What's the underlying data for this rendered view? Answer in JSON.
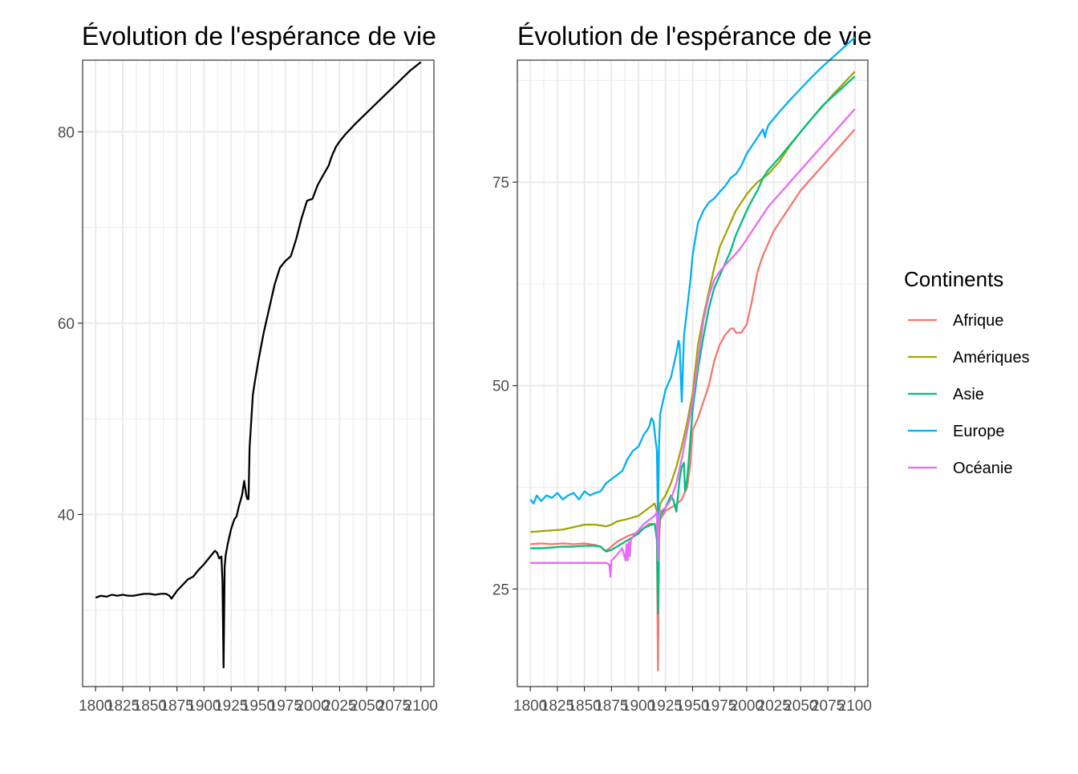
{
  "chart_data": [
    {
      "type": "line",
      "title": "Évolution de l'espérance de vie",
      "xlabel": "",
      "ylabel": "",
      "xlim": [
        1788,
        2112
      ],
      "ylim": [
        22,
        87.5
      ],
      "x_ticks": [
        1800,
        1825,
        1850,
        1875,
        1900,
        1925,
        1950,
        1975,
        2000,
        2025,
        2050,
        2075,
        2100
      ],
      "y_ticks": [
        40,
        60,
        80
      ],
      "grid": true,
      "legend": "none",
      "series": [
        {
          "color": "#000000",
          "x": [
            1800,
            1805,
            1810,
            1815,
            1820,
            1825,
            1830,
            1835,
            1840,
            1845,
            1850,
            1855,
            1860,
            1865,
            1868,
            1870,
            1875,
            1880,
            1885,
            1890,
            1895,
            1900,
            1905,
            1910,
            1912,
            1914,
            1916,
            1917,
            1918,
            1919,
            1920,
            1922,
            1925,
            1928,
            1930,
            1932,
            1935,
            1937,
            1939,
            1940,
            1941,
            1942,
            1945,
            1947,
            1950,
            1955,
            1960,
            1965,
            1970,
            1975,
            1980,
            1985,
            1990,
            1995,
            2000,
            2005,
            2010,
            2015,
            2017,
            2018,
            2019,
            2020,
            2021,
            2022,
            2025,
            2030,
            2040,
            2050,
            2060,
            2070,
            2080,
            2090,
            2100
          ],
          "y": [
            31.3,
            31.5,
            31.4,
            31.6,
            31.5,
            31.6,
            31.5,
            31.5,
            31.6,
            31.7,
            31.7,
            31.6,
            31.7,
            31.7,
            31.5,
            31.2,
            32.0,
            32.6,
            33.2,
            33.5,
            34.2,
            34.8,
            35.5,
            36.2,
            36.0,
            35.4,
            35.6,
            33.0,
            24.0,
            34.5,
            35.8,
            37.0,
            38.5,
            39.5,
            39.8,
            40.8,
            42.0,
            43.5,
            42.0,
            41.6,
            41.6,
            47.0,
            52.5,
            54.0,
            56.0,
            59.0,
            61.5,
            64.0,
            65.8,
            66.5,
            67.0,
            68.8,
            71.0,
            72.8,
            73.0,
            74.5,
            75.5,
            76.5,
            77.2,
            77.5,
            77.8,
            78.0,
            78.3,
            78.5,
            79.0,
            79.7,
            80.9,
            82.0,
            83.1,
            84.2,
            85.3,
            86.4,
            87.3
          ]
        }
      ]
    },
    {
      "type": "line",
      "title": "Évolution de l'espérance de vie",
      "xlabel": "",
      "ylabel": "",
      "xlim": [
        1788,
        2112
      ],
      "ylim": [
        13,
        90
      ],
      "x_ticks": [
        1800,
        1825,
        1850,
        1875,
        1900,
        1925,
        1950,
        1975,
        2000,
        2025,
        2050,
        2075,
        2100
      ],
      "y_ticks": [
        25,
        50,
        75
      ],
      "grid": true,
      "legend": "right",
      "legend_title": "Continents",
      "series": [
        {
          "name": "Afrique",
          "color": "#F8766D",
          "x": [
            1800,
            1810,
            1820,
            1830,
            1840,
            1850,
            1860,
            1865,
            1868,
            1870,
            1875,
            1880,
            1890,
            1900,
            1910,
            1915,
            1917,
            1918,
            1919,
            1920,
            1925,
            1930,
            1935,
            1940,
            1945,
            1948,
            1950,
            1955,
            1960,
            1965,
            1970,
            1975,
            1980,
            1985,
            1988,
            1990,
            1995,
            2000,
            2005,
            2010,
            2015,
            2020,
            2025,
            2030,
            2040,
            2050,
            2060,
            2070,
            2080,
            2090,
            2100
          ],
          "y": [
            30.5,
            30.6,
            30.5,
            30.6,
            30.5,
            30.6,
            30.4,
            30.2,
            29.8,
            29.7,
            30.2,
            30.8,
            31.5,
            32.0,
            33.0,
            33.0,
            32.0,
            15.0,
            31.0,
            33.5,
            34.6,
            35.0,
            35.4,
            36.0,
            37.5,
            40.5,
            44.5,
            46.0,
            48.0,
            50.0,
            53.0,
            55.0,
            56.2,
            57.0,
            57.0,
            56.5,
            56.5,
            57.5,
            60.5,
            64.0,
            66.0,
            67.5,
            69.0,
            70.0,
            72.0,
            74.0,
            75.5,
            77.0,
            78.5,
            80.0,
            81.5
          ]
        },
        {
          "name": "Amériques",
          "color": "#A3A500",
          "x": [
            1800,
            1810,
            1820,
            1830,
            1840,
            1850,
            1860,
            1870,
            1875,
            1880,
            1890,
            1900,
            1910,
            1915,
            1917,
            1918,
            1919,
            1920,
            1925,
            1930,
            1935,
            1940,
            1945,
            1950,
            1955,
            1960,
            1965,
            1970,
            1975,
            1980,
            1985,
            1990,
            1995,
            2000,
            2005,
            2010,
            2015,
            2020,
            2030,
            2040,
            2050,
            2060,
            2070,
            2080,
            2090,
            2100
          ],
          "y": [
            32.0,
            32.1,
            32.2,
            32.3,
            32.6,
            32.9,
            32.9,
            32.7,
            32.9,
            33.3,
            33.6,
            34.0,
            35.0,
            35.5,
            34.5,
            25.0,
            34.5,
            35.5,
            36.5,
            38.0,
            40.0,
            42.5,
            45.5,
            49.0,
            55.0,
            58.5,
            61.5,
            64.5,
            67.0,
            68.5,
            70.0,
            71.5,
            72.5,
            73.5,
            74.3,
            75.0,
            75.5,
            76.0,
            77.5,
            79.5,
            81.2,
            82.8,
            84.3,
            85.8,
            87.2,
            88.6
          ]
        },
        {
          "name": "Asie",
          "color": "#00BF7D",
          "x": [
            1800,
            1810,
            1820,
            1830,
            1840,
            1850,
            1860,
            1865,
            1870,
            1875,
            1880,
            1890,
            1900,
            1905,
            1910,
            1915,
            1917,
            1918,
            1919,
            1920,
            1925,
            1930,
            1932,
            1935,
            1938,
            1940,
            1942,
            1943,
            1945,
            1948,
            1950,
            1955,
            1960,
            1965,
            1968,
            1970,
            1975,
            1980,
            1985,
            1990,
            1995,
            2000,
            2005,
            2010,
            2015,
            2020,
            2030,
            2040,
            2050,
            2060,
            2070,
            2080,
            2090,
            2100
          ],
          "y": [
            30.0,
            30.0,
            30.1,
            30.2,
            30.2,
            30.3,
            30.3,
            30.2,
            29.6,
            29.8,
            30.2,
            31.0,
            31.8,
            32.5,
            32.8,
            33.0,
            31.0,
            22.0,
            32.5,
            34.0,
            35.0,
            36.5,
            36.0,
            34.5,
            38.5,
            40.0,
            40.5,
            37.0,
            38.5,
            43.5,
            47.0,
            52.0,
            56.0,
            59.5,
            61.0,
            62.0,
            63.5,
            65.0,
            66.5,
            68.5,
            70.0,
            71.5,
            72.8,
            74.0,
            75.5,
            76.5,
            78.0,
            79.6,
            81.2,
            82.8,
            84.4,
            85.6,
            86.8,
            88.0
          ]
        },
        {
          "name": "Europe",
          "color": "#00B0F6",
          "x": [
            1800,
            1803,
            1806,
            1810,
            1815,
            1820,
            1825,
            1830,
            1835,
            1840,
            1845,
            1850,
            1855,
            1860,
            1865,
            1870,
            1875,
            1880,
            1885,
            1890,
            1895,
            1900,
            1905,
            1908,
            1910,
            1912,
            1914,
            1916,
            1917,
            1918,
            1919,
            1920,
            1925,
            1930,
            1935,
            1937,
            1938,
            1940,
            1942,
            1945,
            1948,
            1950,
            1955,
            1960,
            1965,
            1970,
            1975,
            1980,
            1985,
            1990,
            1995,
            2000,
            2005,
            2010,
            2015,
            2017,
            2018,
            2019,
            2020,
            2025,
            2030,
            2040,
            2050,
            2060,
            2070,
            2080,
            2090,
            2100
          ],
          "y": [
            36.0,
            35.5,
            36.5,
            35.8,
            36.5,
            36.2,
            36.8,
            36.0,
            36.5,
            36.8,
            36.0,
            37.0,
            36.5,
            36.8,
            37.0,
            38.0,
            38.5,
            39.0,
            39.5,
            41.0,
            42.0,
            42.5,
            44.0,
            44.5,
            45.0,
            46.0,
            45.5,
            43.0,
            42.0,
            33.5,
            43.0,
            46.5,
            49.5,
            51.0,
            54.0,
            55.5,
            55.0,
            48.0,
            56.0,
            59.5,
            63.0,
            66.0,
            70.0,
            71.5,
            72.5,
            73.0,
            73.8,
            74.5,
            75.5,
            76.0,
            77.0,
            78.5,
            79.5,
            80.5,
            81.5,
            80.5,
            81.3,
            81.6,
            82.0,
            82.8,
            83.6,
            85.1,
            86.5,
            87.9,
            89.2,
            90.4,
            91.6,
            92.8
          ]
        },
        {
          "name": "Océanie",
          "color": "#E76BF3",
          "x": [
            1800,
            1810,
            1820,
            1830,
            1840,
            1850,
            1860,
            1870,
            1873,
            1874,
            1875,
            1877,
            1880,
            1885,
            1888,
            1889,
            1890,
            1891,
            1892,
            1893,
            1895,
            1900,
            1905,
            1910,
            1915,
            1917,
            1918,
            1919,
            1920,
            1925,
            1930,
            1935,
            1940,
            1945,
            1950,
            1955,
            1960,
            1965,
            1970,
            1975,
            1980,
            1985,
            1990,
            1995,
            2000,
            2005,
            2010,
            2015,
            2020,
            2030,
            2040,
            2050,
            2060,
            2070,
            2080,
            2090,
            2100
          ],
          "y": [
            28.2,
            28.2,
            28.2,
            28.2,
            28.2,
            28.2,
            28.2,
            28.2,
            28.0,
            26.5,
            28.5,
            28.7,
            29.2,
            30.0,
            28.5,
            30.5,
            28.5,
            30.8,
            29.0,
            31.0,
            31.5,
            32.2,
            33.0,
            33.5,
            34.0,
            34.5,
            28.5,
            34.0,
            34.5,
            35.0,
            36.0,
            38.0,
            41.0,
            44.5,
            48.0,
            53.0,
            58.0,
            61.0,
            63.0,
            64.0,
            64.8,
            65.5,
            66.2,
            67.0,
            68.0,
            69.0,
            70.0,
            71.0,
            72.0,
            73.5,
            75.0,
            76.5,
            78.0,
            79.5,
            81.0,
            82.5,
            84.0
          ]
        }
      ]
    }
  ]
}
